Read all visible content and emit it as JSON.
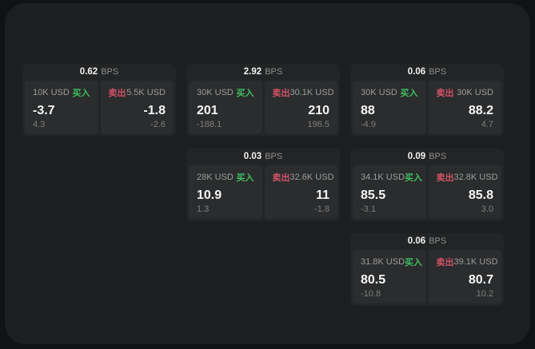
{
  "labels": {
    "bps": "BPS",
    "buy": "买入",
    "sell": "卖出"
  },
  "colors": {
    "background": "#111214",
    "surface": "#1d1e1f",
    "card": "#232425",
    "panel": "#2b2c2d",
    "buy_accent": "#3fbf61",
    "sell_accent": "#d05266",
    "primary_text": "#f5f5f5",
    "muted_text": "#8e8e8e"
  },
  "cards": [
    {
      "bps": "0.62",
      "row": 1,
      "col": 1,
      "buy": {
        "amount": "10K USD",
        "value": "-3.7",
        "sub": "4.3"
      },
      "sell": {
        "amount": "5.5K USD",
        "value": "-1.8",
        "sub": "-2.6"
      }
    },
    {
      "bps": "2.92",
      "row": 1,
      "col": 2,
      "buy": {
        "amount": "30K USD",
        "value": "201",
        "sub": "-188.1"
      },
      "sell": {
        "amount": "30.1K USD",
        "value": "210",
        "sub": "196.5"
      }
    },
    {
      "bps": "0.06",
      "row": 1,
      "col": 3,
      "buy": {
        "amount": "30K USD",
        "value": "88",
        "sub": "-4.9"
      },
      "sell": {
        "amount": "30K USD",
        "value": "88.2",
        "sub": "4.7"
      }
    },
    {
      "bps": "0.03",
      "row": 2,
      "col": 2,
      "buy": {
        "amount": "28K USD",
        "value": "10.9",
        "sub": "1.3"
      },
      "sell": {
        "amount": "32.6K USD",
        "value": "11",
        "sub": "-1.8"
      }
    },
    {
      "bps": "0.09",
      "row": 2,
      "col": 3,
      "buy": {
        "amount": "34.1K USD",
        "value": "85.5",
        "sub": "-3.1"
      },
      "sell": {
        "amount": "32.8K USD",
        "value": "85.8",
        "sub": "3.0"
      }
    },
    {
      "bps": "0.06",
      "row": 3,
      "col": 3,
      "buy": {
        "amount": "31.8K USD",
        "value": "80.5",
        "sub": "-10.8"
      },
      "sell": {
        "amount": "39.1K USD",
        "value": "80.7",
        "sub": "10.2"
      }
    }
  ]
}
